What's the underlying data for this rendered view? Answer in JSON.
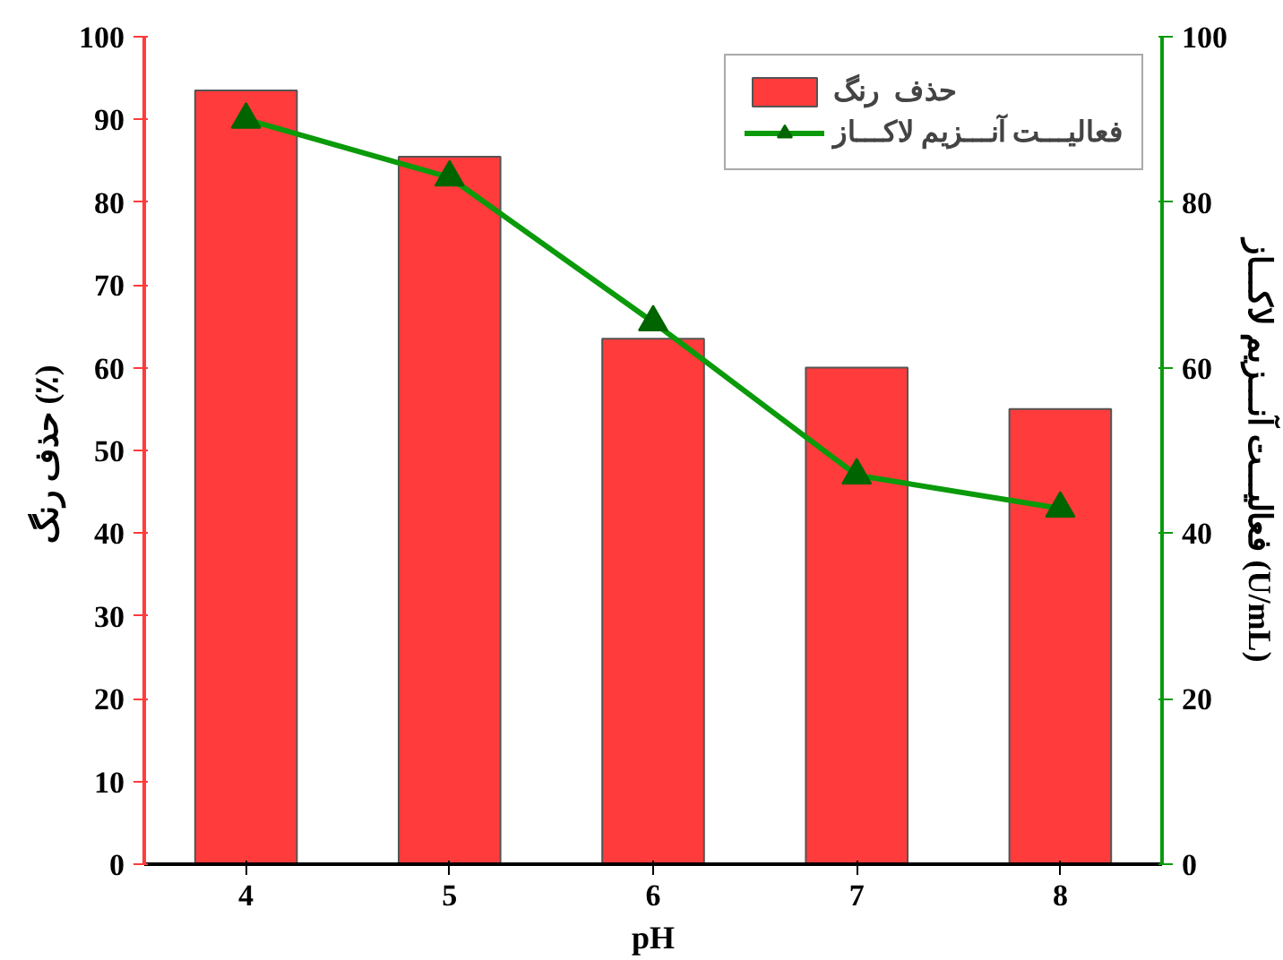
{
  "chart_data": {
    "type": "bar",
    "xlabel": "pH",
    "ylabel": "حذف  رنگ (٪)",
    "y2label": "فعالیـــت آنـــزیم لاکـــاز (U/mL)",
    "categories": [
      "4",
      "5",
      "6",
      "7",
      "8"
    ],
    "series": [
      {
        "name": "حذف  رنگ",
        "color": "#ff3b3b",
        "values": [
          93.5,
          85.5,
          63.5,
          60,
          55
        ]
      },
      {
        "name": "فعالیـــت آنـــزیم لاکـــاز",
        "type": "line",
        "axis": "y2",
        "color": "#0a9a0a",
        "marker": "triangle",
        "values": [
          90,
          83,
          65.5,
          47,
          43
        ]
      }
    ],
    "ylim": [
      0,
      100
    ],
    "yticks": [
      0,
      10,
      20,
      30,
      40,
      50,
      60,
      70,
      80,
      90,
      100
    ],
    "y2lim": [
      0,
      100
    ],
    "y2ticks": [
      0,
      20,
      40,
      60,
      80,
      100
    ],
    "legend": "top right",
    "grid": false
  }
}
